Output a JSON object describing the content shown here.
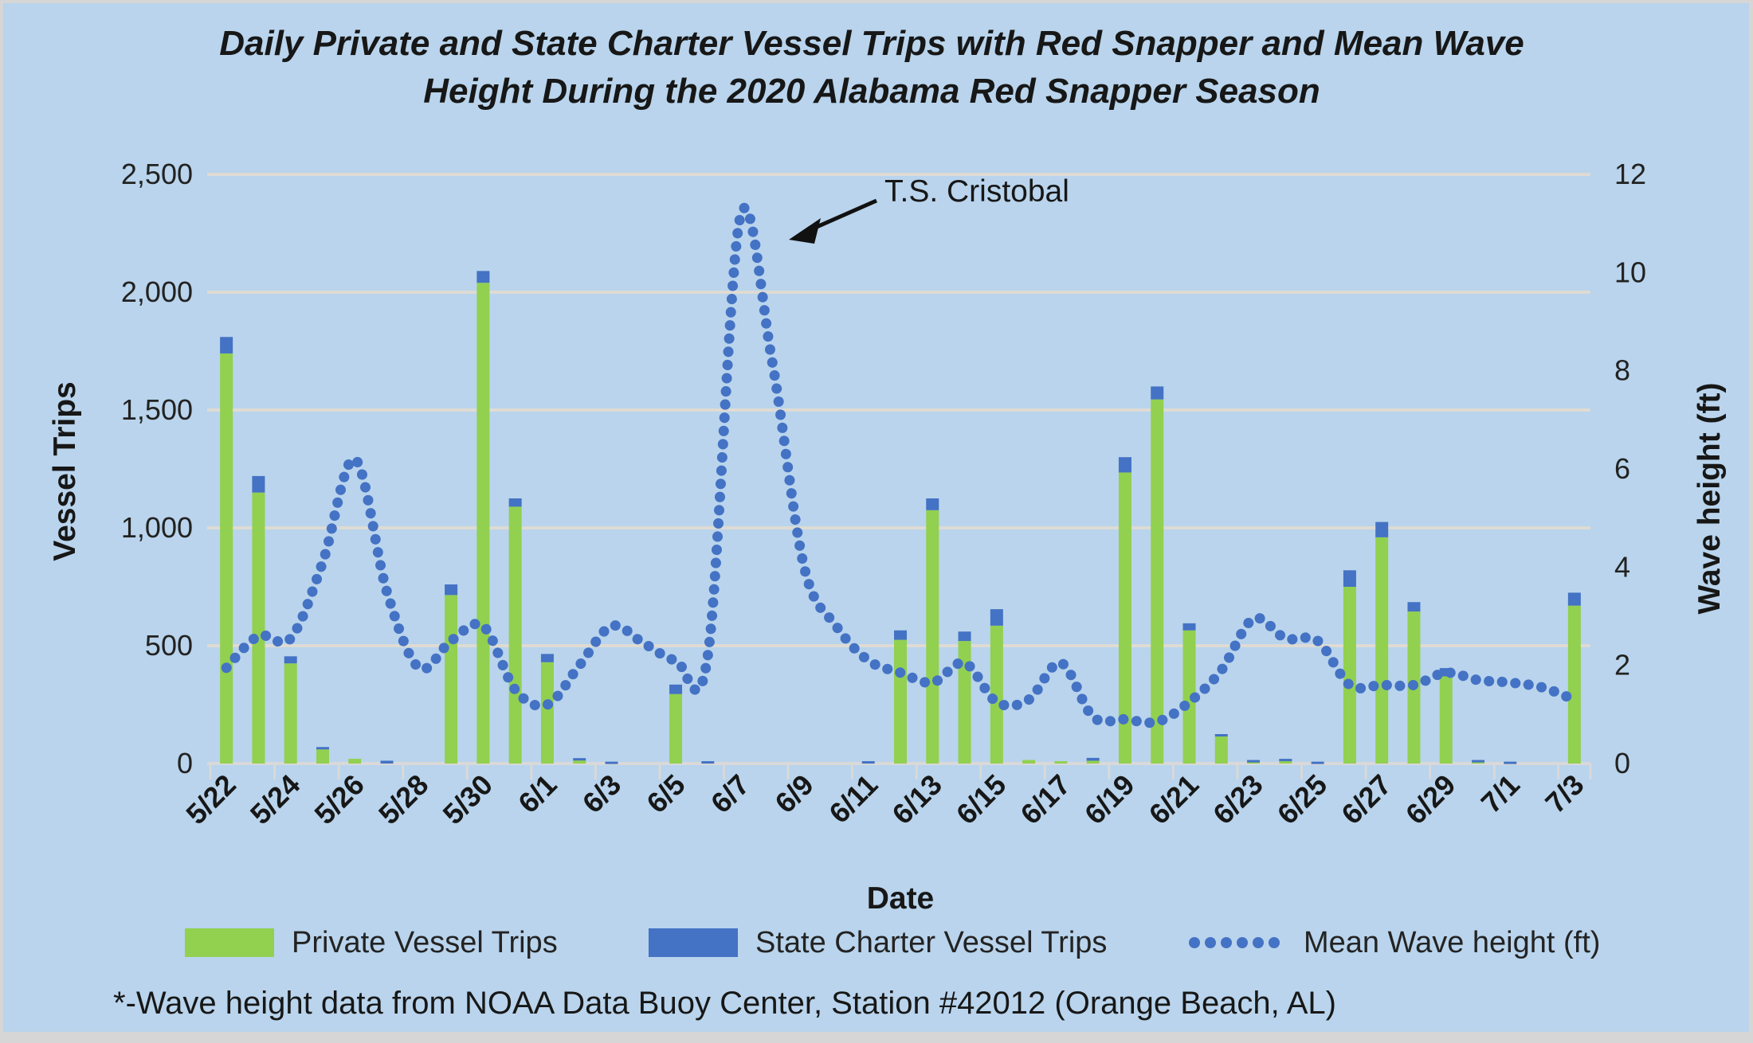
{
  "title": {
    "line1": "Daily Private and State Charter Vessel Trips with Red Snapper and Mean Wave",
    "line2": "Height During the 2020 Alabama Red Snapper Season"
  },
  "annotation": {
    "label": "T.S. Cristobal"
  },
  "footnote": "*-Wave height data from NOAA Data Buoy Center, Station #42012 (Orange Beach, AL)",
  "axes": {
    "left": {
      "title": "Vessel Trips",
      "tick_labels": [
        "2,500",
        "2,000",
        "1,500",
        "1,000",
        "500",
        "0"
      ]
    },
    "right": {
      "title": "Wave height (ft)",
      "tick_labels": [
        "12",
        "10",
        "8",
        "6",
        "4",
        "2",
        "0"
      ]
    },
    "x": {
      "title": "Date",
      "tick_labels": [
        "5/22",
        "5/24",
        "5/26",
        "5/28",
        "5/30",
        "6/1",
        "6/3",
        "6/5",
        "6/7",
        "6/9",
        "6/11",
        "6/13",
        "6/15",
        "6/17",
        "6/19",
        "6/21",
        "6/23",
        "6/25",
        "6/27",
        "6/29",
        "7/1",
        "7/3"
      ]
    }
  },
  "legend": {
    "private": "Private Vessel Trips",
    "charter": "State Charter Vessel Trips",
    "wave": "Mean Wave height (ft)"
  },
  "colors": {
    "background": "#b9d4ec",
    "private_green": "#92d050",
    "charter_blue": "#4472c4",
    "wave_blue": "#4472c4",
    "gridline": "#dedbd4",
    "axis": "#d9d9d9",
    "text": "#171717"
  },
  "chart_data": {
    "type": "bar",
    "subtype": "stacked bars + smoothed dotted line on secondary axis",
    "categories": [
      "5/22",
      "5/23",
      "5/24",
      "5/25",
      "5/26",
      "5/27",
      "5/28",
      "5/29",
      "5/30",
      "5/31",
      "6/1",
      "6/2",
      "6/3",
      "6/4",
      "6/5",
      "6/6",
      "6/7",
      "6/8",
      "6/9",
      "6/10",
      "6/11",
      "6/12",
      "6/13",
      "6/14",
      "6/15",
      "6/16",
      "6/17",
      "6/18",
      "6/19",
      "6/20",
      "6/21",
      "6/22",
      "6/23",
      "6/24",
      "6/25",
      "6/26",
      "6/27",
      "6/28",
      "6/29",
      "6/30",
      "7/1",
      "7/2",
      "7/3"
    ],
    "series": [
      {
        "name": "Private Vessel Trips",
        "type": "bar",
        "stack": "trips",
        "color": "#92d050",
        "axis": "left",
        "values": [
          1740,
          1150,
          425,
          60,
          20,
          0,
          0,
          715,
          2040,
          1090,
          430,
          15,
          0,
          0,
          295,
          0,
          0,
          0,
          0,
          0,
          0,
          525,
          1075,
          520,
          585,
          15,
          10,
          12,
          1235,
          1545,
          565,
          115,
          7,
          12,
          0,
          750,
          960,
          645,
          370,
          5,
          0,
          0,
          670
        ]
      },
      {
        "name": "State Charter Vessel Trips",
        "type": "bar",
        "stack": "trips",
        "color": "#4472c4",
        "axis": "left",
        "values": [
          70,
          70,
          30,
          10,
          0,
          12,
          0,
          45,
          50,
          35,
          35,
          8,
          8,
          0,
          40,
          10,
          0,
          0,
          0,
          0,
          10,
          40,
          50,
          40,
          70,
          0,
          0,
          12,
          65,
          55,
          30,
          10,
          8,
          8,
          8,
          70,
          65,
          40,
          35,
          10,
          8,
          0,
          55
        ]
      },
      {
        "name": "Mean Wave height (ft)",
        "type": "line",
        "style": "dotted",
        "color": "#4472c4",
        "axis": "right",
        "values": [
          1.95,
          2.6,
          2.55,
          4.1,
          6.2,
          3.5,
          1.95,
          2.5,
          2.8,
          1.5,
          1.2,
          2.0,
          2.8,
          2.45,
          2.1,
          2.2,
          11.1,
          8.2,
          4.0,
          2.8,
          2.1,
          1.85,
          1.65,
          2.05,
          1.25,
          1.3,
          2.05,
          0.95,
          0.9,
          0.85,
          1.25,
          1.9,
          2.95,
          2.55,
          2.5,
          1.6,
          1.6,
          1.6,
          1.85,
          1.7,
          1.65,
          1.55,
          1.3
        ]
      }
    ],
    "xlabel": "Date",
    "ylabel_left": "Vessel Trips",
    "ylabel_right": "Wave height (ft)",
    "ylim_left": [
      0,
      2500
    ],
    "ylim_right": [
      0,
      12
    ],
    "grid": "horizontal",
    "legend_position": "bottom",
    "annotation": {
      "text": "T.S. Cristobal",
      "points_to": "wave peak on 6/7"
    }
  }
}
